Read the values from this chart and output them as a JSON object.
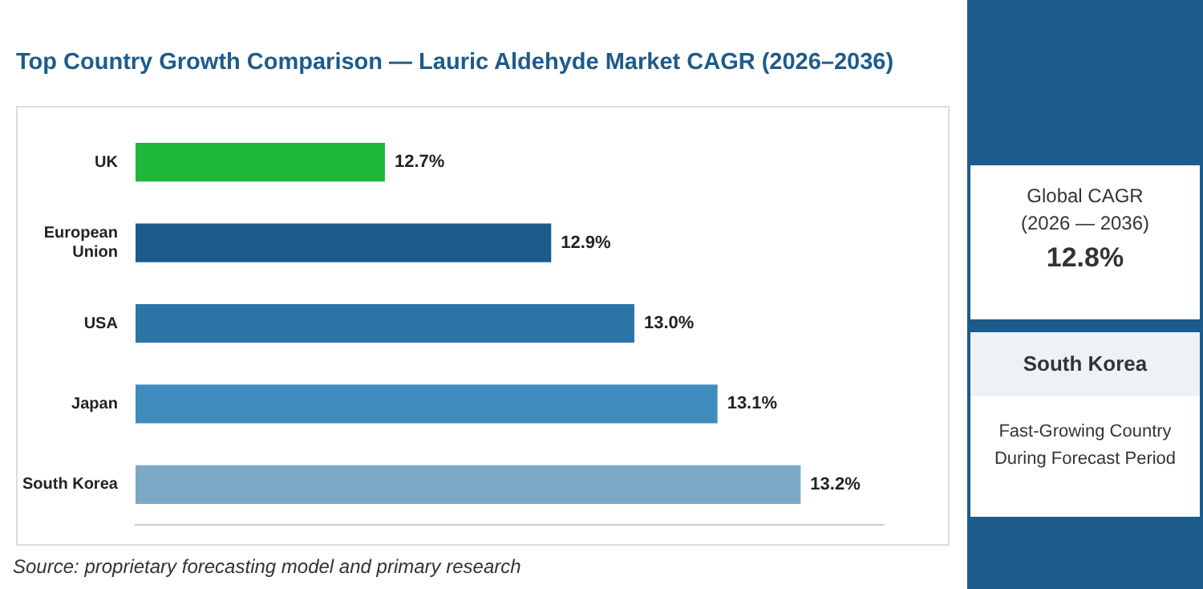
{
  "chart_data": {
    "type": "bar",
    "orientation": "horizontal",
    "title": "Top Country Growth Comparison — Lauric Aldehyde Market CAGR (2026–2036)",
    "categories": [
      "UK",
      "European Union",
      "USA",
      "Japan",
      "South Korea"
    ],
    "values": [
      12.7,
      12.9,
      13.0,
      13.1,
      13.2
    ],
    "colors": [
      "#1db83a",
      "#1d5b8c",
      "#2b74a8",
      "#3f8cbf",
      "#7ba9c5"
    ],
    "xlim": [
      12.4,
      13.3
    ],
    "data_labels": true,
    "value_labels": [
      "12.7%",
      "12.9%",
      "13.0%",
      "13.1%",
      "13.2%"
    ],
    "annotations": [
      "Global CAGR",
      "(2026 — 2036)",
      "12.8%",
      "South Korea",
      "Fast-Growing Country During Forecast Period",
      "Source: proprietary forecasting model and primary research"
    ]
  }
}
